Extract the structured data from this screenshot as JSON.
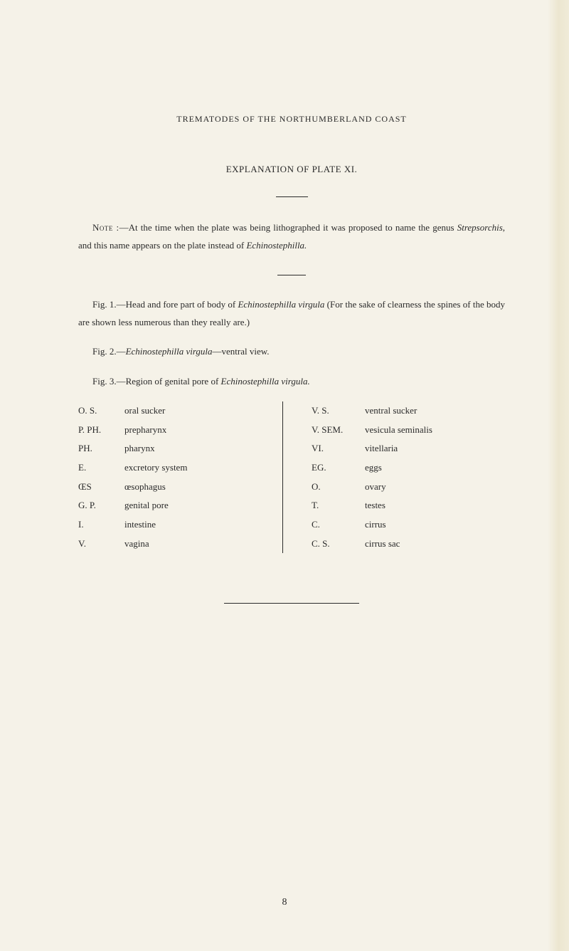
{
  "header": "TREMATODES OF THE NORTHUMBERLAND COAST",
  "title": "EXPLANATION OF PLATE XI.",
  "note_prefix": "Note :",
  "note_text": "—At the time when the plate was being lithographed it was proposed to name the genus ",
  "note_italic1": "Strepsorchis",
  "note_text2": ", and this name appears on the plate instead of ",
  "note_italic2": "Echinostephilla.",
  "fig1_label": "Fig. 1.",
  "fig1_text1": "—Head and fore part of body of ",
  "fig1_italic": "Echinostephilla virgula",
  "fig1_text2": " (For the sake of clearness the spines of the body are shown less numerous than they really are.)",
  "fig2_label": "Fig. 2.",
  "fig2_text1": "—",
  "fig2_italic": "Echinostephilla virgula",
  "fig2_text2": "—ventral view.",
  "fig3_label": "Fig. 3.",
  "fig3_text1": "—Region of genital pore of ",
  "fig3_italic": "Echinostephilla virgula.",
  "table": {
    "left": [
      {
        "abbr": "O. S.",
        "desc": "oral sucker"
      },
      {
        "abbr": "P. PH.",
        "desc": "prepharynx"
      },
      {
        "abbr": "PH.",
        "desc": "pharynx"
      },
      {
        "abbr": "E.",
        "desc": "excretory system"
      },
      {
        "abbr": "ŒS",
        "desc": "œsophagus"
      },
      {
        "abbr": "G. P.",
        "desc": "genital pore"
      },
      {
        "abbr": "I.",
        "desc": "intestine"
      },
      {
        "abbr": "V.",
        "desc": "vagina"
      }
    ],
    "right": [
      {
        "abbr": "V. S.",
        "desc": "ventral sucker"
      },
      {
        "abbr": "V. SEM.",
        "desc": "vesicula seminalis"
      },
      {
        "abbr": "VI.",
        "desc": "vitellaria"
      },
      {
        "abbr": "EG.",
        "desc": "eggs"
      },
      {
        "abbr": "O.",
        "desc": "ovary"
      },
      {
        "abbr": "T.",
        "desc": "testes"
      },
      {
        "abbr": "C.",
        "desc": "cirrus"
      },
      {
        "abbr": "C. S.",
        "desc": "cirrus sac"
      }
    ]
  },
  "page_number": "8"
}
